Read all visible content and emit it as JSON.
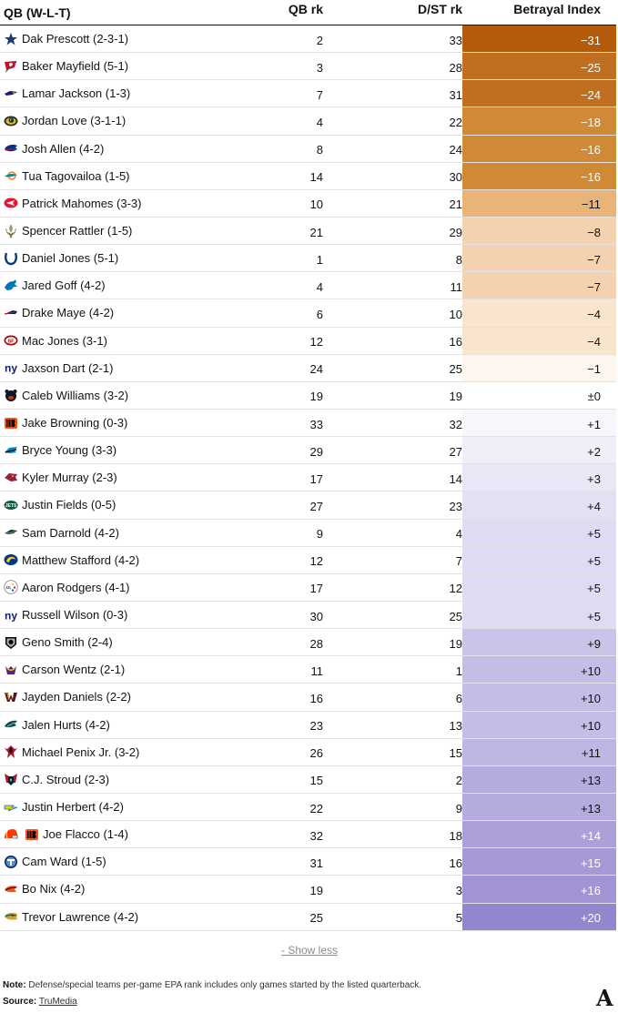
{
  "headers": {
    "qb": "QB (W-L-T)",
    "qb_rank": "QB rk",
    "dst_rank": "D/ST rk",
    "betrayal": "Betrayal Index"
  },
  "rows": [
    {
      "qb": "Dak Prescott (2-3-1)",
      "team_icon": "cowboys-star",
      "qb_rank": "2",
      "dst_rank": "33",
      "index": "−31",
      "color": "#b45a0b",
      "text_color": "#ffffff"
    },
    {
      "qb": "Baker Mayfield (5-1)",
      "team_icon": "buccaneers-flag",
      "qb_rank": "3",
      "dst_rank": "28",
      "index": "−25",
      "color": "#c06e1f",
      "text_color": "#ffffff"
    },
    {
      "qb": "Lamar Jackson (1-3)",
      "team_icon": "ravens-bird",
      "qb_rank": "7",
      "dst_rank": "31",
      "index": "−24",
      "color": "#c06e1f",
      "text_color": "#ffffff"
    },
    {
      "qb": "Jordan Love (3-1-1)",
      "team_icon": "packers-g",
      "qb_rank": "4",
      "dst_rank": "22",
      "index": "−18",
      "color": "#d08a36",
      "text_color": "#ffffff"
    },
    {
      "qb": "Josh Allen (4-2)",
      "team_icon": "bills-buffalo",
      "qb_rank": "8",
      "dst_rank": "24",
      "index": "−16",
      "color": "#d08a36",
      "text_color": "#ffffff"
    },
    {
      "qb": "Tua Tagovailoa (1-5)",
      "team_icon": "dolphins-dolphin",
      "qb_rank": "14",
      "dst_rank": "30",
      "index": "−16",
      "color": "#d08a36",
      "text_color": "#ffffff"
    },
    {
      "qb": "Patrick Mahomes (3-3)",
      "team_icon": "chiefs-arrowhead",
      "qb_rank": "10",
      "dst_rank": "21",
      "index": "−11",
      "color": "#e8b47a",
      "text_color": "#121212"
    },
    {
      "qb": "Spencer Rattler (1-5)",
      "team_icon": "saints-fleur",
      "qb_rank": "21",
      "dst_rank": "29",
      "index": "−8",
      "color": "#f3d2af",
      "text_color": "#121212"
    },
    {
      "qb": "Daniel Jones (5-1)",
      "team_icon": "colts-horseshoe",
      "qb_rank": "1",
      "dst_rank": "8",
      "index": "−7",
      "color": "#f3d2af",
      "text_color": "#121212"
    },
    {
      "qb": "Jared Goff (4-2)",
      "team_icon": "lions-lion",
      "qb_rank": "4",
      "dst_rank": "11",
      "index": "−7",
      "color": "#f3d2af",
      "text_color": "#121212"
    },
    {
      "qb": "Drake Maye (4-2)",
      "team_icon": "patriots-flying-elvis",
      "qb_rank": "6",
      "dst_rank": "10",
      "index": "−4",
      "color": "#f9e4ce",
      "text_color": "#121212"
    },
    {
      "qb": "Mac Jones (3-1)",
      "team_icon": "49ers-oval",
      "qb_rank": "12",
      "dst_rank": "16",
      "index": "−4",
      "color": "#f9e4ce",
      "text_color": "#121212"
    },
    {
      "qb": "Jaxson Dart (2-1)",
      "team_icon": "giants-ny",
      "qb_rank": "24",
      "dst_rank": "25",
      "index": "−1",
      "color": "#fdf6ef",
      "text_color": "#121212"
    },
    {
      "qb": "Caleb Williams (3-2)",
      "team_icon": "bears-head",
      "qb_rank": "19",
      "dst_rank": "19",
      "index": "±0",
      "color": "#ffffff",
      "text_color": "#121212"
    },
    {
      "qb": "Jake Browning (0-3)",
      "team_icon": "bengals-b",
      "qb_rank": "33",
      "dst_rank": "32",
      "index": "+1",
      "color": "#f7f6fc",
      "text_color": "#121212"
    },
    {
      "qb": "Bryce Young (3-3)",
      "team_icon": "panthers-cat",
      "qb_rank": "29",
      "dst_rank": "27",
      "index": "+2",
      "color": "#f0eef9",
      "text_color": "#121212"
    },
    {
      "qb": "Kyler Murray (2-3)",
      "team_icon": "cardinals-bird",
      "qb_rank": "17",
      "dst_rank": "14",
      "index": "+3",
      "color": "#e9e6f6",
      "text_color": "#121212"
    },
    {
      "qb": "Justin Fields (0-5)",
      "team_icon": "jets-oval",
      "qb_rank": "27",
      "dst_rank": "23",
      "index": "+4",
      "color": "#e4e0f3",
      "text_color": "#121212"
    },
    {
      "qb": "Sam Darnold (4-2)",
      "team_icon": "seahawks-head",
      "qb_rank": "9",
      "dst_rank": "4",
      "index": "+5",
      "color": "#e0dbf2",
      "text_color": "#121212"
    },
    {
      "qb": "Matthew Stafford (4-2)",
      "team_icon": "rams-horn",
      "qb_rank": "12",
      "dst_rank": "7",
      "index": "+5",
      "color": "#e0dbf2",
      "text_color": "#121212"
    },
    {
      "qb": "Aaron Rodgers (4-1)",
      "team_icon": "steelers-logo",
      "qb_rank": "17",
      "dst_rank": "12",
      "index": "+5",
      "color": "#e0dbf2",
      "text_color": "#121212"
    },
    {
      "qb": "Russell Wilson (0-3)",
      "team_icon": "giants-ny",
      "qb_rank": "30",
      "dst_rank": "25",
      "index": "+5",
      "color": "#e0dbf2",
      "text_color": "#121212"
    },
    {
      "qb": "Geno Smith (2-4)",
      "team_icon": "raiders-shield",
      "qb_rank": "28",
      "dst_rank": "19",
      "index": "+9",
      "color": "#cbc3e8",
      "text_color": "#121212"
    },
    {
      "qb": "Carson Wentz (2-1)",
      "team_icon": "vikings-head",
      "qb_rank": "11",
      "dst_rank": "1",
      "index": "+10",
      "color": "#c6bde6",
      "text_color": "#121212"
    },
    {
      "qb": "Jayden Daniels (2-2)",
      "team_icon": "commanders-w",
      "qb_rank": "16",
      "dst_rank": "6",
      "index": "+10",
      "color": "#c6bde6",
      "text_color": "#121212"
    },
    {
      "qb": "Jalen Hurts (4-2)",
      "team_icon": "eagles-head",
      "qb_rank": "23",
      "dst_rank": "13",
      "index": "+10",
      "color": "#c6bde6",
      "text_color": "#121212"
    },
    {
      "qb": "Michael Penix Jr. (3-2)",
      "team_icon": "falcons-bird",
      "qb_rank": "26",
      "dst_rank": "15",
      "index": "+11",
      "color": "#c0b6e3",
      "text_color": "#121212"
    },
    {
      "qb": "C.J. Stroud (2-3)",
      "team_icon": "texans-bull",
      "qb_rank": "15",
      "dst_rank": "2",
      "index": "+13",
      "color": "#b6abde",
      "text_color": "#121212"
    },
    {
      "qb": "Justin Herbert (4-2)",
      "team_icon": "chargers-bolt",
      "qb_rank": "22",
      "dst_rank": "9",
      "index": "+13",
      "color": "#b6abde",
      "text_color": "#121212"
    },
    {
      "qb": "Joe Flacco (1-4)",
      "team_icon": "browns-bengals",
      "qb_rank": "32",
      "dst_rank": "18",
      "index": "+14",
      "color": "#ada0d9",
      "text_color": "#ffffff"
    },
    {
      "qb": "Cam Ward (1-5)",
      "team_icon": "titans-t",
      "qb_rank": "31",
      "dst_rank": "16",
      "index": "+15",
      "color": "#a798d6",
      "text_color": "#ffffff"
    },
    {
      "qb": "Bo Nix (4-2)",
      "team_icon": "broncos-horse",
      "qb_rank": "19",
      "dst_rank": "3",
      "index": "+16",
      "color": "#a294d4",
      "text_color": "#ffffff"
    },
    {
      "qb": "Trevor Lawrence (4-2)",
      "team_icon": "jaguars-head",
      "qb_rank": "25",
      "dst_rank": "5",
      "index": "+20",
      "color": "#9486cc",
      "text_color": "#ffffff"
    }
  ],
  "footer": {
    "show_less": "- Show less",
    "note_label": "Note:",
    "note_text": " Defense/special teams per-game EPA rank includes only games started by the listed quarterback.",
    "source_label": "Source:",
    "source_link": "TruMedia",
    "brand": "A"
  }
}
